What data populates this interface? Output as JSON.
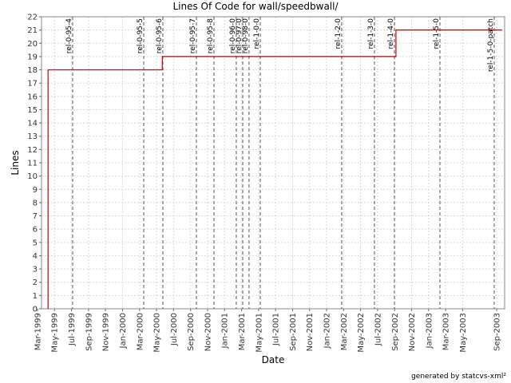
{
  "chart_data": {
    "type": "line",
    "title": "Lines Of Code for wall/speedbwall/",
    "x_label": "Date",
    "y_label": "Lines",
    "footer": "generated by statcvs-xml²",
    "xlim": [
      1999.206,
      2003.745
    ],
    "ylim": [
      0,
      22
    ],
    "yticks": [
      0,
      1,
      2,
      3,
      4,
      5,
      6,
      7,
      8,
      9,
      10,
      11,
      12,
      13,
      14,
      15,
      16,
      17,
      18,
      19,
      20,
      21,
      22
    ],
    "xticks": [
      {
        "value": 1999.167,
        "label": "Mar-1999"
      },
      {
        "value": 1999.333,
        "label": "May-1999"
      },
      {
        "value": 1999.5,
        "label": "Jul-1999"
      },
      {
        "value": 1999.667,
        "label": "Sep-1999"
      },
      {
        "value": 1999.833,
        "label": "Nov-1999"
      },
      {
        "value": 2000.0,
        "label": "Jan-2000"
      },
      {
        "value": 2000.167,
        "label": "Mar-2000"
      },
      {
        "value": 2000.333,
        "label": "May-2000"
      },
      {
        "value": 2000.5,
        "label": "Jul-2000"
      },
      {
        "value": 2000.667,
        "label": "Sep-2000"
      },
      {
        "value": 2000.833,
        "label": "Nov-2000"
      },
      {
        "value": 2001.0,
        "label": "Jan-2001"
      },
      {
        "value": 2001.167,
        "label": "Mar-2001"
      },
      {
        "value": 2001.333,
        "label": "May-2001"
      },
      {
        "value": 2001.5,
        "label": "Jul-2001"
      },
      {
        "value": 2001.667,
        "label": "Sep-2001"
      },
      {
        "value": 2001.833,
        "label": "Nov-2001"
      },
      {
        "value": 2002.0,
        "label": "Jan-2002"
      },
      {
        "value": 2002.167,
        "label": "Mar-2002"
      },
      {
        "value": 2002.333,
        "label": "May-2002"
      },
      {
        "value": 2002.5,
        "label": "Jul-2002"
      },
      {
        "value": 2002.667,
        "label": "Sep-2002"
      },
      {
        "value": 2002.833,
        "label": "Nov-2002"
      },
      {
        "value": 2003.0,
        "label": "Jan-2003"
      },
      {
        "value": 2003.167,
        "label": "Mar-2003"
      },
      {
        "value": 2003.333,
        "label": "May-2003"
      },
      {
        "value": 2003.667,
        "label": "Sep-2003"
      }
    ],
    "grid": true,
    "series": [
      {
        "name": "Lines",
        "color": "#cc0000",
        "x": [
          1999.27,
          1999.27,
          2000.39,
          2000.39,
          2002.68,
          2002.68,
          2003.72
        ],
        "values": [
          0,
          18,
          18,
          19,
          19,
          21,
          21
        ]
      }
    ],
    "releases": [
      {
        "name": "rel-0-95-4",
        "x": 1999.511
      },
      {
        "name": "rel-0-95-5",
        "x": 2000.208
      },
      {
        "name": "rel-0-95-6",
        "x": 2000.395
      },
      {
        "name": "rel-0-95-7",
        "x": 2000.724
      },
      {
        "name": "rel-0-95-8",
        "x": 2000.896
      },
      {
        "name": "rel-0-96-0",
        "x": 2001.115
      },
      {
        "name": "rel-0-97-0",
        "x": 2001.178
      },
      {
        "name": "rel-0-98-0",
        "x": 2001.24
      },
      {
        "name": "rel-1-0-0",
        "x": 2001.35
      },
      {
        "name": "rel-1-2-0",
        "x": 2002.148
      },
      {
        "name": "rel-1-3-0",
        "x": 2002.469
      },
      {
        "name": "rel-1-4-0",
        "x": 2002.665
      },
      {
        "name": "rel-1-5-0",
        "x": 2003.111
      },
      {
        "name": "rel-1-5-0-patch",
        "x": 2003.643
      }
    ]
  }
}
